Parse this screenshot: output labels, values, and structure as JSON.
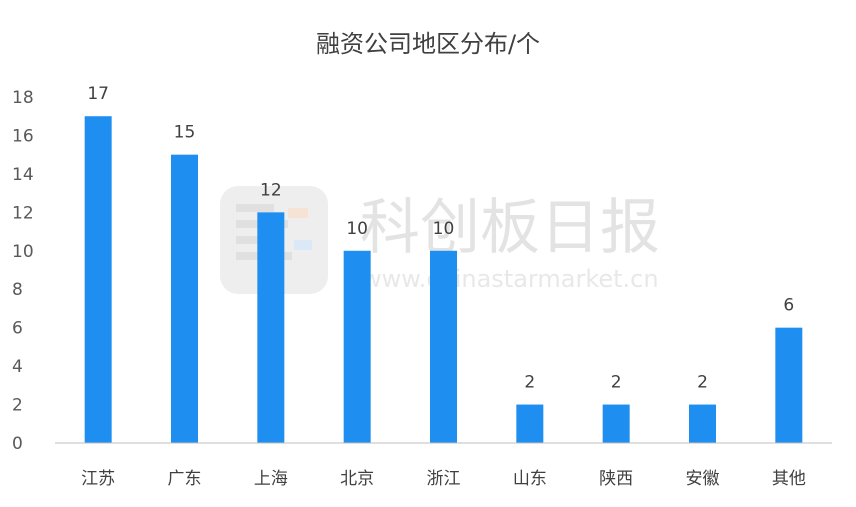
{
  "colors": {
    "bar": "#1f8ef1",
    "axis": "#bfbfbf"
  },
  "watermark": {
    "name": "科创板日报",
    "url": "www.chinastarmarket.cn"
  },
  "chart_data": {
    "type": "bar",
    "title": "融资公司地区分布/个",
    "categories": [
      "江苏",
      "广东",
      "上海",
      "北京",
      "浙江",
      "山东",
      "陕西",
      "安徽",
      "其他"
    ],
    "values": [
      17,
      15,
      12,
      10,
      10,
      2,
      2,
      2,
      6
    ],
    "ylim": [
      0,
      18
    ],
    "yticks": [
      0,
      2,
      4,
      6,
      8,
      10,
      12,
      14,
      16,
      18
    ],
    "grid": false,
    "legend": "none"
  }
}
